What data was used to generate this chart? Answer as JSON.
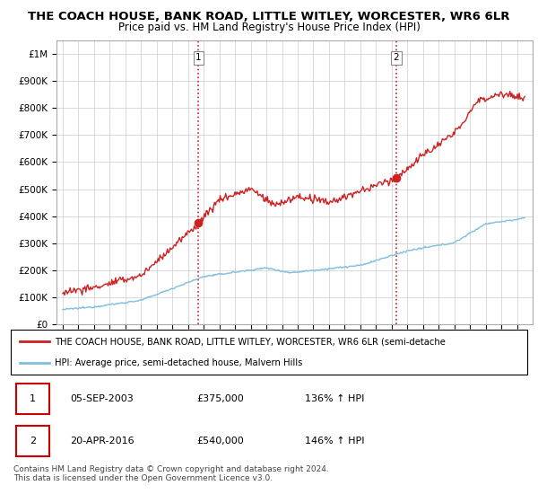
{
  "title": "THE COACH HOUSE, BANK ROAD, LITTLE WITLEY, WORCESTER, WR6 6LR",
  "subtitle": "Price paid vs. HM Land Registry's House Price Index (HPI)",
  "ylim": [
    0,
    1050000
  ],
  "yticks": [
    0,
    100000,
    200000,
    300000,
    400000,
    500000,
    600000,
    700000,
    800000,
    900000,
    1000000
  ],
  "ytick_labels": [
    "£0",
    "£100K",
    "£200K",
    "£300K",
    "£400K",
    "£500K",
    "£600K",
    "£700K",
    "£800K",
    "£900K",
    "£1M"
  ],
  "sale1_date": 2003.67,
  "sale1_price": 375000,
  "sale1_label": "1",
  "sale2_date": 2016.3,
  "sale2_price": 540000,
  "sale2_label": "2",
  "hpi_line_color": "#7fbfdf",
  "price_line_color": "#cc2222",
  "vline_color": "#cc2222",
  "background_color": "#ffffff",
  "grid_color": "#cccccc",
  "legend_label_price": "THE COACH HOUSE, BANK ROAD, LITTLE WITLEY, WORCESTER, WR6 6LR (semi-detache",
  "legend_label_hpi": "HPI: Average price, semi-detached house, Malvern Hills",
  "table_row1": [
    "1",
    "05-SEP-2003",
    "£375,000",
    "136% ↑ HPI"
  ],
  "table_row2": [
    "2",
    "20-APR-2016",
    "£540,000",
    "146% ↑ HPI"
  ],
  "footnote": "Contains HM Land Registry data © Crown copyright and database right 2024.\nThis data is licensed under the Open Government Licence v3.0.",
  "title_fontsize": 9.5,
  "subtitle_fontsize": 8.5
}
